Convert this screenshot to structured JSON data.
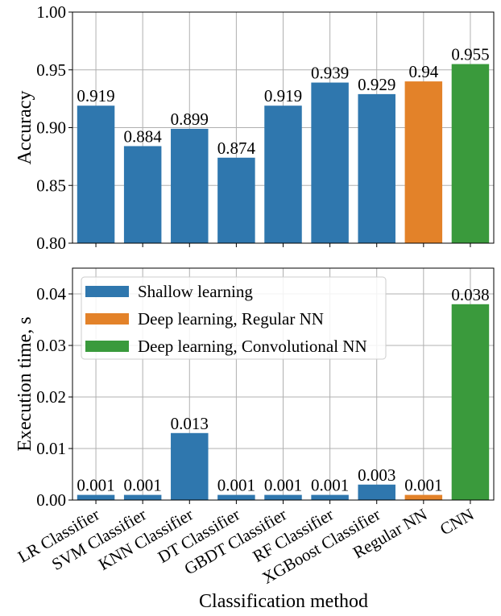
{
  "chart_data": [
    {
      "id": "accuracy",
      "type": "bar",
      "categories": [
        "LR Classifier",
        "SVM Classifier",
        "KNN Classifier",
        "DT Classifier",
        "GBDT Classifier",
        "RF Classifier",
        "XGBoost Classifier",
        "Regular NN",
        "CNN"
      ],
      "values": [
        0.919,
        0.884,
        0.899,
        0.874,
        0.919,
        0.939,
        0.929,
        0.94,
        0.955
      ],
      "value_labels": [
        "0.919",
        "0.884",
        "0.899",
        "0.874",
        "0.919",
        "0.939",
        "0.929",
        "0.94",
        "0.955"
      ],
      "groups": [
        "shallow",
        "shallow",
        "shallow",
        "shallow",
        "shallow",
        "shallow",
        "shallow",
        "regular",
        "cnn"
      ],
      "ylabel": "Accuracy",
      "xlabel": "",
      "ylim": [
        0.8,
        1.0
      ],
      "yticks": [
        0.8,
        0.85,
        0.9,
        0.95,
        1.0
      ],
      "ytick_labels": [
        "0.80",
        "0.85",
        "0.90",
        "0.95",
        "1.00"
      ],
      "grid": true
    },
    {
      "id": "execution_time",
      "type": "bar",
      "categories": [
        "LR Classifier",
        "SVM Classifier",
        "KNN Classifier",
        "DT Classifier",
        "GBDT Classifier",
        "RF Classifier",
        "XGBoost Classifier",
        "Regular NN",
        "CNN"
      ],
      "values": [
        0.001,
        0.001,
        0.013,
        0.001,
        0.001,
        0.001,
        0.003,
        0.001,
        0.038
      ],
      "value_labels": [
        "0.001",
        "0.001",
        "0.013",
        "0.001",
        "0.001",
        "0.001",
        "0.003",
        "0.001",
        "0.038"
      ],
      "groups": [
        "shallow",
        "shallow",
        "shallow",
        "shallow",
        "shallow",
        "shallow",
        "shallow",
        "regular",
        "cnn"
      ],
      "ylabel": "Execution time, s",
      "xlabel": "Classification method",
      "ylim": [
        0,
        0.045
      ],
      "yticks": [
        0,
        0.01,
        0.02,
        0.03,
        0.04
      ],
      "ytick_labels": [
        "0.00",
        "0.01",
        "0.02",
        "0.03",
        "0.04"
      ],
      "grid": true,
      "legend": {
        "position": "top-left",
        "entries": [
          {
            "group": "shallow",
            "label": "Shallow learning"
          },
          {
            "group": "regular",
            "label": "Deep learning, Regular NN"
          },
          {
            "group": "cnn",
            "label": "Deep learning, Convolutional NN"
          }
        ]
      }
    }
  ],
  "colors": {
    "shallow": "#2f77ae",
    "regular": "#e38229",
    "cnn": "#3a9a3c"
  }
}
